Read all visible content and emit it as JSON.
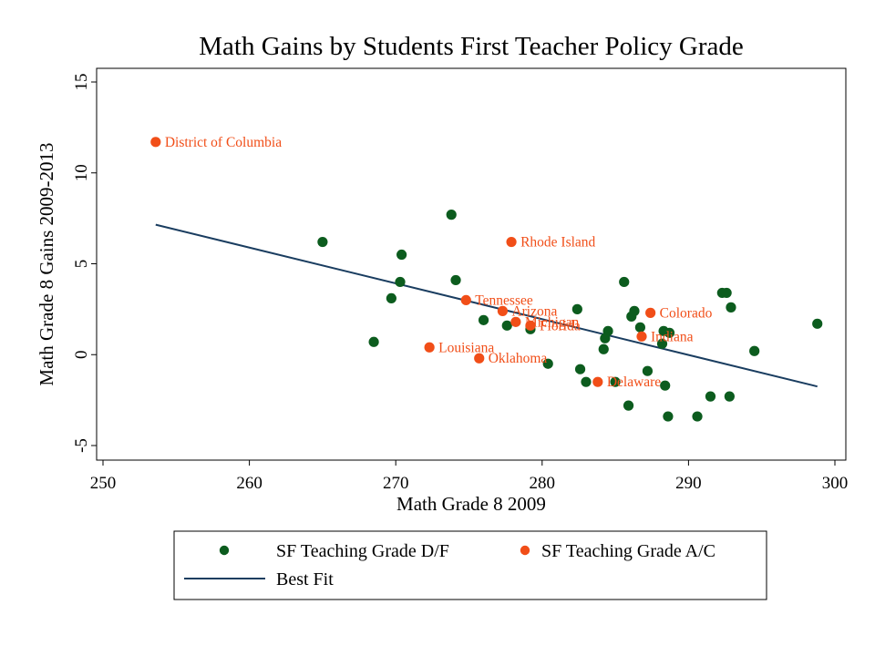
{
  "colors": {
    "dfPoint": "#0c5c1e",
    "acPoint": "#f14e18",
    "fitLine": "#1a3d60",
    "axis": "#000000"
  },
  "chart_data": {
    "type": "scatter",
    "title": "Math Gains by Students First Teacher Policy Grade",
    "xlabel": "Math Grade 8 2009",
    "ylabel": "Math Grade 8 Gains 2009-2013",
    "xlim": [
      250,
      300
    ],
    "ylim": [
      -5,
      15
    ],
    "xticks": [
      250,
      260,
      270,
      280,
      290,
      300
    ],
    "yticks": [
      -5,
      0,
      5,
      10,
      15
    ],
    "grid": false,
    "legend_position": "bottom",
    "series": [
      {
        "name": "SF Teaching Grade D/F",
        "kind": "points",
        "points": [
          {
            "x": 265.0,
            "y": 6.2
          },
          {
            "x": 268.5,
            "y": 0.7
          },
          {
            "x": 269.7,
            "y": 3.1
          },
          {
            "x": 270.3,
            "y": 4.0
          },
          {
            "x": 270.4,
            "y": 5.5
          },
          {
            "x": 273.8,
            "y": 7.7
          },
          {
            "x": 274.1,
            "y": 4.1
          },
          {
            "x": 276.0,
            "y": 1.9
          },
          {
            "x": 277.6,
            "y": 1.6
          },
          {
            "x": 279.2,
            "y": 1.4
          },
          {
            "x": 280.4,
            "y": -0.5
          },
          {
            "x": 282.4,
            "y": 2.5
          },
          {
            "x": 282.6,
            "y": -0.8
          },
          {
            "x": 283.0,
            "y": -1.5
          },
          {
            "x": 284.2,
            "y": 0.3
          },
          {
            "x": 284.3,
            "y": 0.9
          },
          {
            "x": 284.5,
            "y": 1.3
          },
          {
            "x": 285.0,
            "y": -1.5
          },
          {
            "x": 285.6,
            "y": 4.0
          },
          {
            "x": 285.9,
            "y": -2.8
          },
          {
            "x": 286.1,
            "y": 2.1
          },
          {
            "x": 286.3,
            "y": 2.4
          },
          {
            "x": 286.7,
            "y": 1.5
          },
          {
            "x": 287.2,
            "y": -0.9
          },
          {
            "x": 288.2,
            "y": 0.6
          },
          {
            "x": 288.3,
            "y": 1.3
          },
          {
            "x": 288.4,
            "y": -1.7
          },
          {
            "x": 288.6,
            "y": -3.4
          },
          {
            "x": 288.7,
            "y": 1.2
          },
          {
            "x": 290.6,
            "y": -3.4
          },
          {
            "x": 291.5,
            "y": -2.3
          },
          {
            "x": 292.3,
            "y": 3.4
          },
          {
            "x": 292.6,
            "y": 3.4
          },
          {
            "x": 292.8,
            "y": -2.3
          },
          {
            "x": 292.9,
            "y": 2.6
          },
          {
            "x": 294.5,
            "y": 0.2
          },
          {
            "x": 298.8,
            "y": 1.7
          }
        ]
      },
      {
        "name": "SF Teaching Grade A/C",
        "kind": "points",
        "points": [
          {
            "x": 253.6,
            "y": 11.7,
            "label": "District of Columbia"
          },
          {
            "x": 277.9,
            "y": 6.2,
            "label": "Rhode Island"
          },
          {
            "x": 274.8,
            "y": 3.0,
            "label": "Tennessee"
          },
          {
            "x": 277.3,
            "y": 2.4,
            "label": "Arizona"
          },
          {
            "x": 278.2,
            "y": 1.8,
            "label": "Michigan"
          },
          {
            "x": 279.2,
            "y": 1.6,
            "label": "Florida"
          },
          {
            "x": 287.4,
            "y": 2.3,
            "label": "Colorado"
          },
          {
            "x": 286.8,
            "y": 1.0,
            "label": "Indiana"
          },
          {
            "x": 272.3,
            "y": 0.4,
            "label": "Louisiana"
          },
          {
            "x": 275.7,
            "y": -0.2,
            "label": "Oklahoma"
          },
          {
            "x": 283.8,
            "y": -1.5,
            "label": "Delaware"
          }
        ]
      },
      {
        "name": "Best Fit",
        "kind": "line",
        "points": [
          {
            "x": 253.6,
            "y": 7.15
          },
          {
            "x": 298.8,
            "y": -1.75
          }
        ]
      }
    ]
  }
}
